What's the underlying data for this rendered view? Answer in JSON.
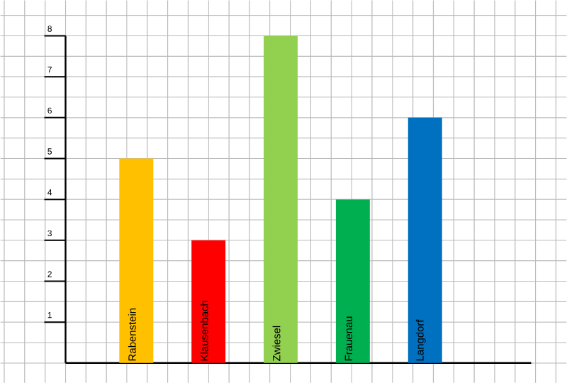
{
  "chart_data": {
    "type": "bar",
    "categories": [
      "Rabenstein",
      "Klausenbach",
      "Zwiesel",
      "Frauenau",
      "Langdorf"
    ],
    "values": [
      5,
      3,
      8,
      4,
      6
    ],
    "colors": [
      "#ffc000",
      "#ff0000",
      "#92d050",
      "#00b050",
      "#0070c0"
    ],
    "ylim": [
      0,
      8
    ],
    "yticks": [
      1,
      2,
      3,
      4,
      5,
      6,
      7,
      8
    ],
    "grid": true
  }
}
